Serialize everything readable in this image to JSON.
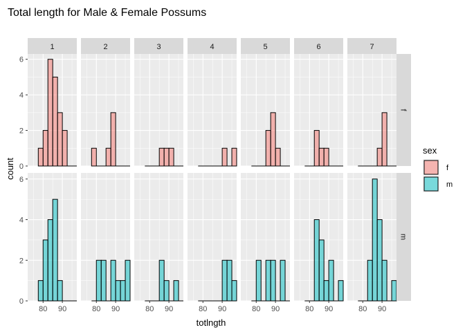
{
  "chart_data": {
    "type": "bar",
    "chart_kind": "faceted histogram",
    "title": "Total length for Male & Female Possums",
    "xlabel": "totlngth",
    "ylabel": "count",
    "col_facets": [
      "1",
      "2",
      "3",
      "4",
      "5",
      "6",
      "7"
    ],
    "row_facets": [
      "f",
      "m"
    ],
    "x_ticks": [
      "80",
      "90"
    ],
    "y_ticks": [
      "0",
      "2",
      "4",
      "6"
    ],
    "xlim": [
      72,
      97.5
    ],
    "ylim": [
      0,
      6.3
    ],
    "grid": true,
    "legend": {
      "title": "sex",
      "position": "right",
      "items": [
        {
          "label": "f",
          "color": "#F8766D"
        },
        {
          "label": "m",
          "color": "#00BFC4"
        }
      ]
    },
    "bins": {
      "start": 77.5,
      "width": 2.5,
      "count": 8,
      "centers": [
        78.75,
        81.25,
        83.75,
        86.25,
        88.75,
        91.25,
        93.75,
        96.25
      ]
    },
    "series": [
      {
        "name": "f",
        "facet_row": "f",
        "facet_col": "1",
        "counts": [
          1,
          2,
          6,
          5,
          3,
          2
        ]
      },
      {
        "name": "f",
        "facet_row": "f",
        "facet_col": "2",
        "counts": [
          1,
          0,
          0,
          1,
          3
        ]
      },
      {
        "name": "f",
        "facet_row": "f",
        "facet_col": "3",
        "counts": [
          0,
          0,
          0,
          1,
          1,
          1
        ]
      },
      {
        "name": "f",
        "facet_row": "f",
        "facet_col": "4",
        "counts": [
          0,
          0,
          0,
          0,
          0,
          1,
          0,
          1
        ]
      },
      {
        "name": "f",
        "facet_row": "f",
        "facet_col": "5",
        "counts": [
          0,
          0,
          0,
          2,
          3,
          1
        ]
      },
      {
        "name": "f",
        "facet_row": "f",
        "facet_col": "6",
        "counts": [
          0,
          0,
          2,
          1,
          1
        ]
      },
      {
        "name": "f",
        "facet_row": "f",
        "facet_col": "7",
        "counts": [
          0,
          0,
          0,
          0,
          1,
          3
        ]
      },
      {
        "name": "m",
        "facet_row": "m",
        "facet_col": "1",
        "counts": [
          1,
          3,
          4,
          5,
          1
        ]
      },
      {
        "name": "m",
        "facet_row": "m",
        "facet_col": "2",
        "counts": [
          0,
          2,
          2,
          0,
          2,
          1,
          1,
          2
        ]
      },
      {
        "name": "m",
        "facet_row": "m",
        "facet_col": "3",
        "counts": [
          0,
          0,
          0,
          2,
          1,
          0,
          1
        ]
      },
      {
        "name": "m",
        "facet_row": "m",
        "facet_col": "4",
        "counts": [
          0,
          0,
          0,
          0,
          0,
          2,
          2,
          1
        ]
      },
      {
        "name": "m",
        "facet_row": "m",
        "facet_col": "5",
        "counts": [
          0,
          2,
          0,
          2,
          2,
          0,
          2
        ]
      },
      {
        "name": "m",
        "facet_row": "m",
        "facet_col": "6",
        "counts": [
          0,
          0,
          4,
          3,
          1,
          2,
          0,
          1
        ]
      },
      {
        "name": "m",
        "facet_row": "m",
        "facet_col": "7",
        "counts": [
          0,
          0,
          2,
          6,
          4,
          2,
          0,
          1
        ]
      }
    ]
  }
}
